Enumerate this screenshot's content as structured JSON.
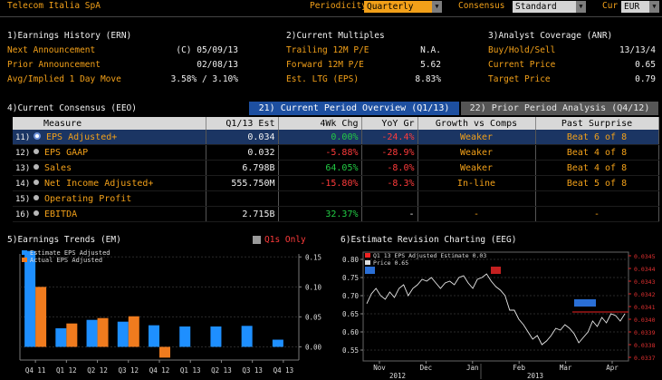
{
  "header": {
    "title": "Telecom Italia SpA",
    "periodicity_label": "Periodicity",
    "periodicity_value": "Quarterly",
    "consensus_label": "Consensus",
    "consensus_value": "Standard",
    "cur_label": "Cur",
    "cur_value": "EUR"
  },
  "earnings_history": {
    "title": "1)Earnings History (ERN)",
    "rows": [
      {
        "label": "Next Announcement",
        "value": "(C)  05/09/13"
      },
      {
        "label": "Prior Announcement",
        "value": "02/08/13"
      },
      {
        "label": "Avg/Implied 1 Day Move",
        "value": "3.58% / 3.10%"
      }
    ]
  },
  "current_multiples": {
    "title": "2)Current Multiples",
    "rows": [
      {
        "label": "Trailing 12M P/E",
        "value": "N.A."
      },
      {
        "label": "Forward 12M P/E",
        "value": "5.62"
      },
      {
        "label": "Est. LTG (EPS)",
        "value": "8.83%"
      }
    ]
  },
  "analyst_coverage": {
    "title": "3)Analyst Coverage (ANR)",
    "rows": [
      {
        "label": "Buy/Hold/Sell",
        "value": "13/13/4"
      },
      {
        "label": "Current Price",
        "value": "0.65"
      },
      {
        "label": "Target Price",
        "value": "0.79"
      }
    ]
  },
  "consensus": {
    "title": "4)Current Consensus (EEO)",
    "tab_active": "21) Current Period Overview (Q1/13)",
    "tab_inactive": "22) Prior Period Analysis (Q4/12)",
    "headers": [
      "Measure",
      "Q1/13 Est",
      "4Wk Chg",
      "YoY Gr",
      "Growth vs Comps",
      "Past Surprise"
    ],
    "rows": [
      {
        "num": "11)",
        "measure": "EPS Adjusted+",
        "est": "0.034",
        "chg": "0.00%",
        "chg_color": "green",
        "yoy": "-24.4%",
        "yoy_color": "red",
        "growth": "Weaker",
        "surprise": "Beat 6 of 8",
        "selected": true
      },
      {
        "num": "12)",
        "measure": "EPS GAAP",
        "est": "0.032",
        "chg": "-5.88%",
        "chg_color": "red",
        "yoy": "-28.9%",
        "yoy_color": "red",
        "growth": "Weaker",
        "surprise": "Beat 4 of 8",
        "selected": false
      },
      {
        "num": "13)",
        "measure": "Sales",
        "est": "6.798B",
        "chg": "64.05%",
        "chg_color": "green",
        "yoy": "-8.0%",
        "yoy_color": "red",
        "growth": "Weaker",
        "surprise": "Beat 4 of 8",
        "selected": false
      },
      {
        "num": "14)",
        "measure": "Net Income Adjusted+",
        "est": "555.750M",
        "chg": "-15.80%",
        "chg_color": "red",
        "yoy": "-8.3%",
        "yoy_color": "red",
        "growth": "In-line",
        "surprise": "Beat 5 of 8",
        "selected": false
      },
      {
        "num": "15)",
        "measure": "Operating Profit",
        "est": "",
        "chg": "",
        "chg_color": "green",
        "yoy": "",
        "yoy_color": "red",
        "growth": "",
        "surprise": "",
        "selected": false
      },
      {
        "num": "16)",
        "measure": "EBITDA",
        "est": "2.715B",
        "chg": "32.37%",
        "chg_color": "green",
        "yoy": "-",
        "yoy_color": "white",
        "growth": "-",
        "surprise": "-",
        "selected": false
      }
    ]
  },
  "earnings_trends": {
    "title": "5)Earnings Trends (EM)",
    "q1s_label": "Q1s Only",
    "colors": {
      "estimate": "#1e8fff",
      "actual": "#f07b1e"
    },
    "chart_data": {
      "type": "bar",
      "categories": [
        "Q4 11",
        "Q1 12",
        "Q2 12",
        "Q3 12",
        "Q4 12",
        "Q1 13",
        "Q2 13",
        "Q3 13",
        "Q4 13"
      ],
      "series": [
        {
          "name": "Estimate EPS Adjusted",
          "values": [
            0.16,
            0.031,
            0.045,
            0.042,
            0.036,
            0.034,
            0.034,
            0.035,
            0.012
          ]
        },
        {
          "name": "Actual EPS Adjusted",
          "values": [
            0.1,
            0.039,
            0.048,
            0.051,
            -0.018,
            null,
            null,
            null,
            null
          ]
        }
      ],
      "yticks": [
        "0.15",
        "0.10",
        "0.05",
        "0.00"
      ],
      "ylim": [
        -0.022,
        0.155
      ]
    }
  },
  "estimate_revision": {
    "title": "6)Estimate Revision Charting (EEG)",
    "legend_estimate": "Q1 13 EPS Adjusted Estimate 0.03",
    "legend_price": "Price  0.65",
    "chart_data": {
      "type": "line",
      "xlabels": [
        "Nov",
        "Dec",
        "Jan",
        "Feb",
        "Mar",
        "Apr"
      ],
      "year_labels": [
        "2012",
        "2013"
      ],
      "left_ticks": [
        "0.80",
        "0.75",
        "0.70",
        "0.65",
        "0.60",
        "0.55"
      ],
      "right_ticks": [
        "0.0345",
        "0.0344",
        "0.0343",
        "0.0342",
        "0.0341",
        "0.0340",
        "0.0339",
        "0.0338",
        "0.0337"
      ],
      "price": [
        0.678,
        0.705,
        0.72,
        0.7,
        0.69,
        0.71,
        0.695,
        0.72,
        0.73,
        0.7,
        0.72,
        0.73,
        0.745,
        0.74,
        0.75,
        0.735,
        0.72,
        0.735,
        0.74,
        0.73,
        0.75,
        0.755,
        0.735,
        0.72,
        0.745,
        0.75,
        0.76,
        0.74,
        0.725,
        0.715,
        0.7,
        0.66,
        0.66,
        0.635,
        0.62,
        0.6,
        0.58,
        0.59,
        0.565,
        0.575,
        0.59,
        0.61,
        0.605,
        0.62,
        0.61,
        0.595,
        0.57,
        0.585,
        0.6,
        0.63,
        0.615,
        0.64,
        0.625,
        0.65,
        0.645,
        0.63,
        0.65
      ],
      "estimate_line": 0.034,
      "ylim": [
        0.52,
        0.82
      ]
    }
  }
}
